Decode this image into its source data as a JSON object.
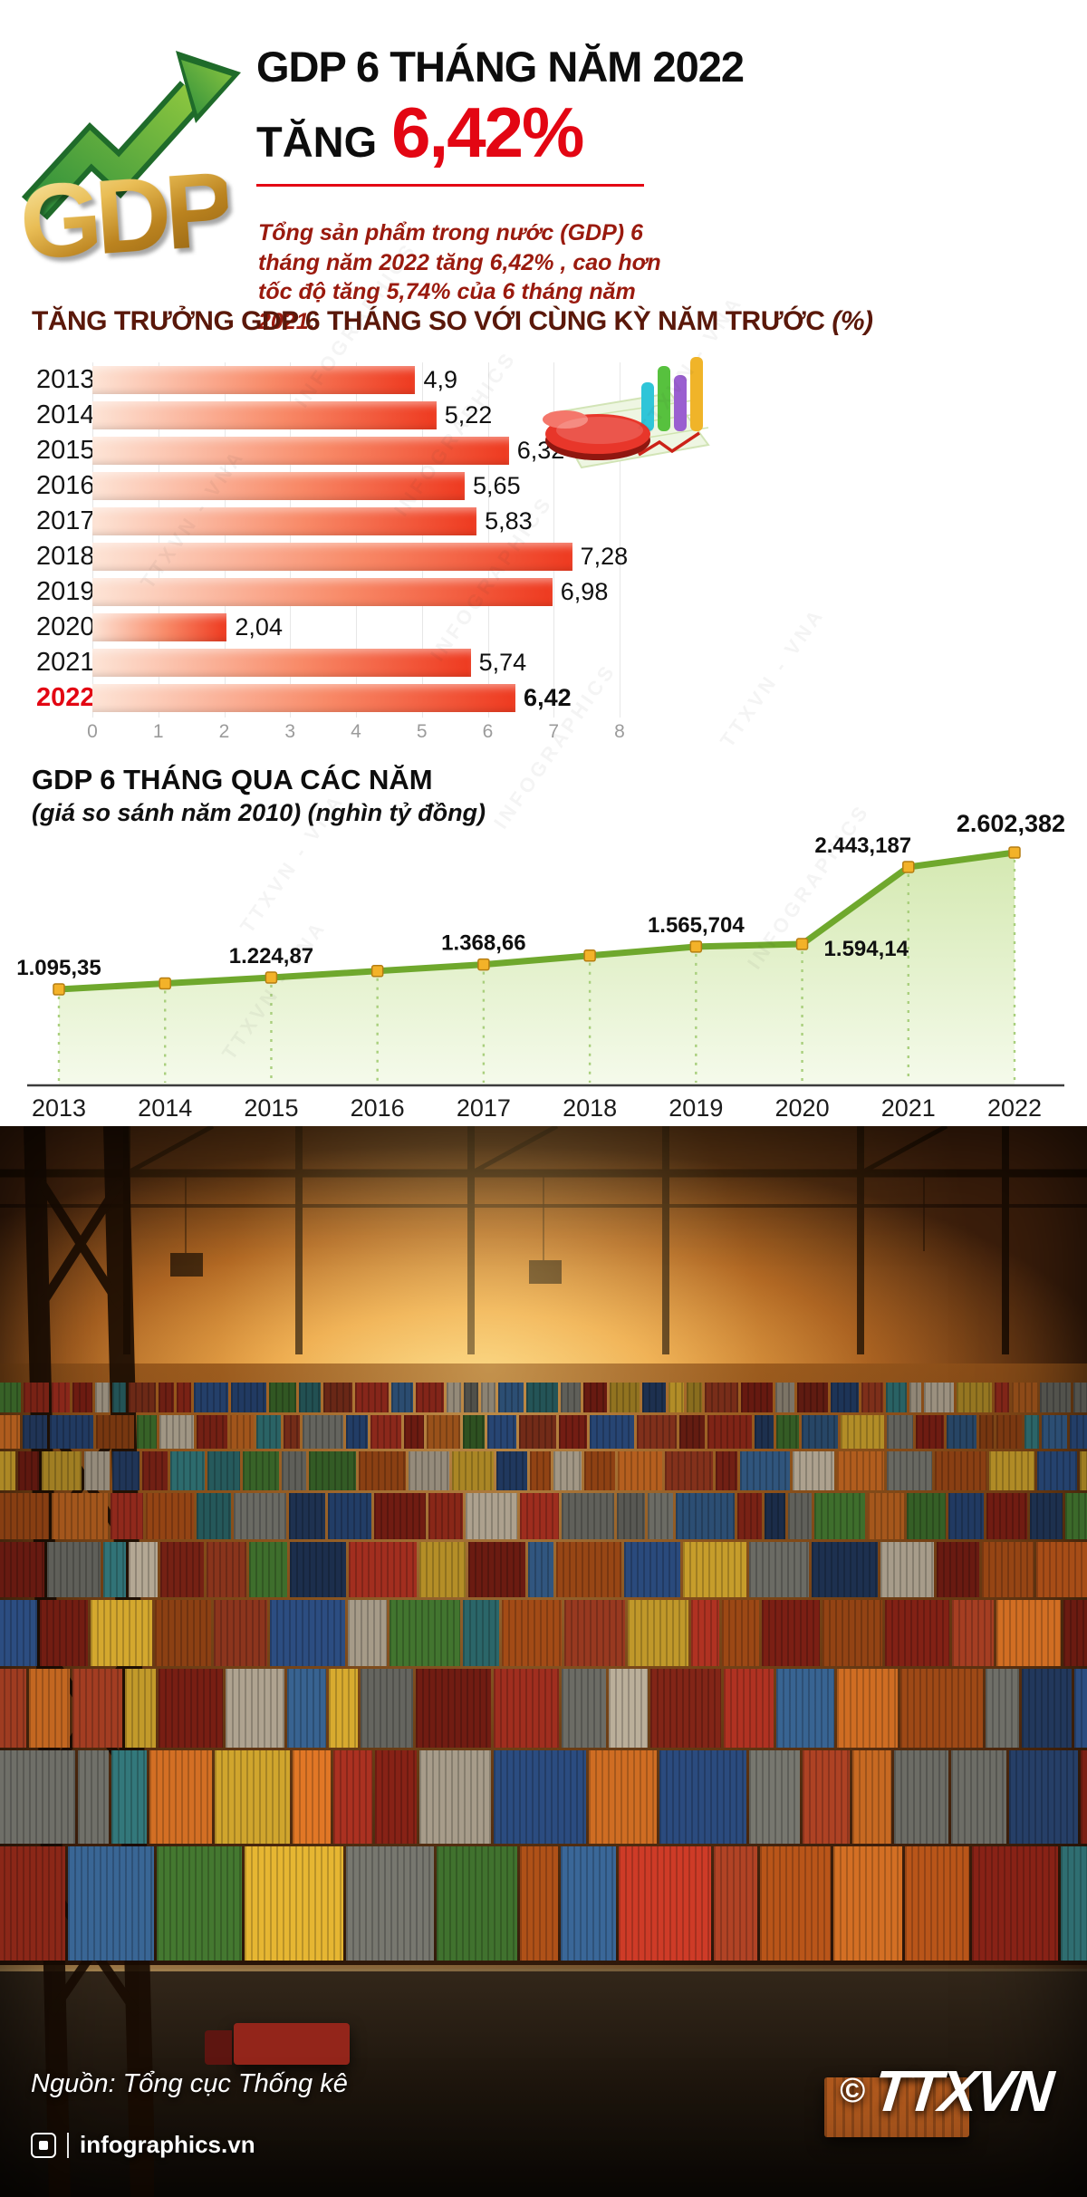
{
  "header": {
    "logo_text": "GDP",
    "title_line1": "GDP 6 THÁNG NĂM 2022",
    "tang_label": "TĂNG",
    "tang_value": "6,42%",
    "description": "Tổng sản phẩm trong nước (GDP) 6 tháng năm 2022 tăng 6,42% , cao hơn tốc độ tăng 5,74% của 6 tháng năm 2021.",
    "accent_color": "#e30613"
  },
  "chart_data": [
    {
      "type": "bar",
      "orientation": "horizontal",
      "title": "TĂNG TRƯỞNG GDP 6 THÁNG SO VỚI CÙNG KỲ NĂM TRƯỚC",
      "unit_label": "(%)",
      "categories": [
        "2013",
        "2014",
        "2015",
        "2016",
        "2017",
        "2018",
        "2019",
        "2020",
        "2021",
        "2022"
      ],
      "values": [
        4.9,
        5.22,
        6.32,
        5.65,
        5.83,
        7.28,
        6.98,
        2.04,
        5.74,
        6.42
      ],
      "value_labels": [
        "4,9",
        "5,22",
        "6,32",
        "5,65",
        "5,83",
        "7,28",
        "6,98",
        "2,04",
        "5,74",
        "6,42"
      ],
      "xlim": [
        0,
        8
      ],
      "x_ticks": [
        "0",
        "1",
        "2",
        "3",
        "4",
        "5",
        "6",
        "7",
        "8"
      ],
      "grid": true,
      "highlight_category": "2022",
      "highlight_color": "#e30613",
      "bar_color_start": "#fde4d6",
      "bar_color_mid": "#f88a68",
      "bar_color_end": "#ee3a20",
      "grid_color": "#e7e7e7",
      "tick_color": "#9b9b9b"
    },
    {
      "type": "area",
      "title": "GDP 6 THÁNG QUA CÁC NĂM",
      "subtitle": "(giá so sánh năm 2010) (nghìn tỷ đồng)",
      "x": [
        "2013",
        "2014",
        "2015",
        "2016",
        "2017",
        "2018",
        "2019",
        "2020",
        "2021",
        "2022"
      ],
      "values": [
        1095.35,
        1160,
        1224.87,
        1297,
        1368.66,
        1467,
        1565.704,
        1594.14,
        2443.187,
        2602.382
      ],
      "point_labels": [
        "1.095,35",
        "",
        "1.224,87",
        "",
        "1.368,66",
        "",
        "1.565,704",
        "1.594,14",
        "2.443,187",
        "2.602,382"
      ],
      "bold_label_index": 9,
      "grid": false,
      "legend": "none",
      "line_color": "#6fa82d",
      "marker_color": "#f3b229",
      "marker_border": "#b57d12",
      "dash_color": "#a9cf7d",
      "fill_color_top": "#cde5a4",
      "fill_color_bottom": "#f4fae9",
      "axis_color": "#3c3c3c",
      "label_color": "#101010"
    }
  ],
  "footer": {
    "source": "Nguồn: Tổng cục Thống kê",
    "site": "infographics.vn",
    "agency": "TTXVN",
    "copyright": "©"
  },
  "watermark": {
    "texts": [
      "TTXVN - VNA",
      "INFOGRAPHICS"
    ]
  },
  "photo": {
    "palette": [
      "#b23322",
      "#8a2718",
      "#c96a22",
      "#a14a16",
      "#2f6f72",
      "#2a4a7c",
      "#22385c",
      "#6d6d66",
      "#3e6e2c",
      "#caa02c",
      "#b4a894",
      "#7c1f14",
      "#355e8a",
      "#9a3a20"
    ]
  }
}
